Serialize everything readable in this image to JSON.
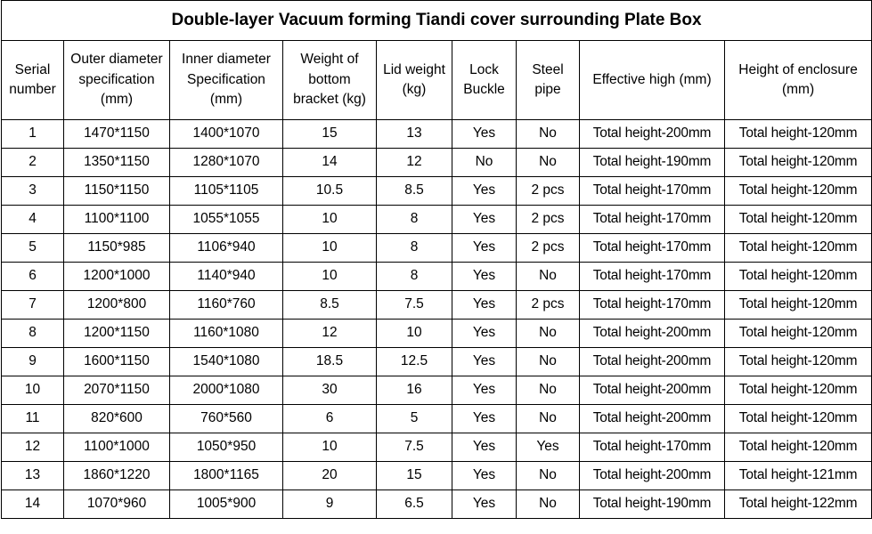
{
  "title": "Double-layer Vacuum forming Tiandi cover surrounding Plate Box",
  "table": {
    "headers": [
      "Serial number",
      "Outer diameter specification (mm)",
      "Inner diameter Specification (mm)",
      "Weight of bottom bracket (kg)",
      "Lid weight (kg)",
      "Lock Buckle",
      "Steel pipe",
      "Effective high (mm)",
      "Height of enclosure (mm)"
    ],
    "rows": [
      [
        "1",
        "1470*1150",
        "1400*1070",
        "15",
        "13",
        "Yes",
        "No",
        "Total height-200mm",
        "Total height-120mm"
      ],
      [
        "2",
        "1350*1150",
        "1280*1070",
        "14",
        "12",
        "No",
        "No",
        "Total height-190mm",
        "Total height-120mm"
      ],
      [
        "3",
        "1150*1150",
        "1105*1105",
        "10.5",
        "8.5",
        "Yes",
        "2 pcs",
        "Total height-170mm",
        "Total height-120mm"
      ],
      [
        "4",
        "1100*1100",
        "1055*1055",
        "10",
        "8",
        "Yes",
        "2 pcs",
        "Total height-170mm",
        "Total height-120mm"
      ],
      [
        "5",
        "1150*985",
        "1106*940",
        "10",
        "8",
        "Yes",
        "2 pcs",
        "Total height-170mm",
        "Total height-120mm"
      ],
      [
        "6",
        "1200*1000",
        "1140*940",
        "10",
        "8",
        "Yes",
        "No",
        "Total height-170mm",
        "Total height-120mm"
      ],
      [
        "7",
        "1200*800",
        "1160*760",
        "8.5",
        "7.5",
        "Yes",
        "2 pcs",
        "Total height-170mm",
        "Total height-120mm"
      ],
      [
        "8",
        "1200*1150",
        "1160*1080",
        "12",
        "10",
        "Yes",
        "No",
        "Total height-200mm",
        "Total height-120mm"
      ],
      [
        "9",
        "1600*1150",
        "1540*1080",
        "18.5",
        "12.5",
        "Yes",
        "No",
        "Total height-200mm",
        "Total height-120mm"
      ],
      [
        "10",
        "2070*1150",
        "2000*1080",
        "30",
        "16",
        "Yes",
        "No",
        "Total height-200mm",
        "Total height-120mm"
      ],
      [
        "11",
        "820*600",
        "760*560",
        "6",
        "5",
        "Yes",
        "No",
        "Total height-200mm",
        "Total height-120mm"
      ],
      [
        "12",
        "1100*1000",
        "1050*950",
        "10",
        "7.5",
        "Yes",
        "Yes",
        "Total height-170mm",
        "Total height-120mm"
      ],
      [
        "13",
        "1860*1220",
        "1800*1165",
        "20",
        "15",
        "Yes",
        "No",
        "Total height-200mm",
        "Total height-121mm"
      ],
      [
        "14",
        "1070*960",
        "1005*900",
        "9",
        "6.5",
        "Yes",
        "No",
        "Total height-190mm",
        "Total height-122mm"
      ]
    ]
  }
}
